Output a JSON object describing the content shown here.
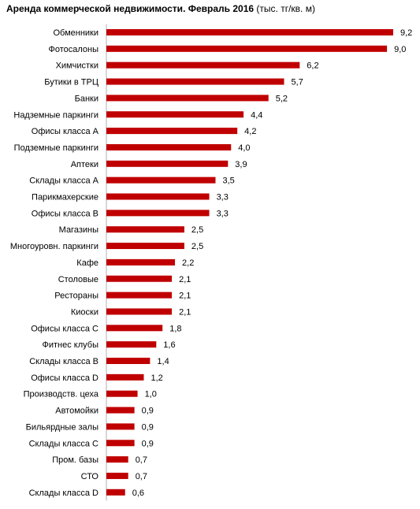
{
  "chart_data": {
    "type": "bar",
    "orientation": "horizontal",
    "title": "Аренда коммерческой  недвижимости.  Февраль 2016",
    "unit": "(тыс. тг/кв. м)",
    "bar_color": "#C00000",
    "xlim": [
      0,
      9.2
    ],
    "grid": false,
    "legend": "none",
    "categories": [
      "Обменники",
      "Фотосалоны",
      "Химчистки",
      "Бутики в ТРЦ",
      "Банки",
      "Надземные паркинги",
      "Офисы класса А",
      "Подземные паркинги",
      "Аптеки",
      "Склады класса А",
      "Парикмахерские",
      "Офисы класса В",
      "Магазины",
      "Многоуровн. паркинги",
      "Кафе",
      "Столовые",
      "Рестораны",
      "Киоски",
      "Офисы класса С",
      "Фитнес клубы",
      "Склады класса В",
      "Офисы класса D",
      "Производств. цеха",
      "Автомойки",
      "Бильярдные залы",
      "Склады класса С",
      "Пром. базы",
      "СТО",
      "Склады класса D"
    ],
    "values": [
      9.2,
      9.0,
      6.2,
      5.7,
      5.2,
      4.4,
      4.2,
      4.0,
      3.9,
      3.5,
      3.3,
      3.3,
      2.5,
      2.5,
      2.2,
      2.1,
      2.1,
      2.1,
      1.8,
      1.6,
      1.4,
      1.2,
      1.0,
      0.9,
      0.9,
      0.9,
      0.7,
      0.7,
      0.6
    ],
    "value_labels": [
      "9,2",
      "9,0",
      "6,2",
      "5,7",
      "5,2",
      "4,4",
      "4,2",
      "4,0",
      "3,9",
      "3,5",
      "3,3",
      "3,3",
      "2,5",
      "2,5",
      "2,2",
      "2,1",
      "2,1",
      "2,1",
      "1,8",
      "1,6",
      "1,4",
      "1,2",
      "1,0",
      "0,9",
      "0,9",
      "0,9",
      "0,7",
      "0,7",
      "0,6"
    ]
  }
}
